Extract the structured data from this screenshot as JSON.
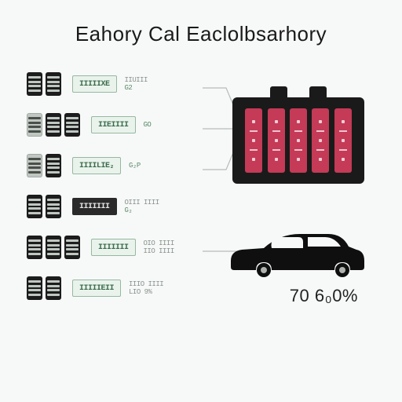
{
  "title": "Eahory Cal Eaclolbsarhory",
  "colors": {
    "background": "#f7f9f9",
    "text": "#1a1a1a",
    "chip_dark": "#1d1d1d",
    "chip_light": "#bfc7c1",
    "badge_green_bg": "#e9f3ec",
    "badge_green_border": "#96b89f",
    "badge_green_text": "#3a6b4a",
    "badge_black_bg": "#2a2a2a",
    "badge_black_text": "#e6e6e6",
    "sub_gray": "#8a938c",
    "sub_green": "#5b8a67",
    "battery_body": "#1a1a1a",
    "cell_pink": "#c43a57",
    "lead_line": "#b6bcb8",
    "car_body": "#0f0f0f"
  },
  "rows": [
    {
      "chips": [
        "dark",
        "dark"
      ],
      "badge": {
        "text": "IIIIIXE",
        "style": "green"
      },
      "sub": {
        "top": "IIUIII",
        "bottom": "G2",
        "top_color": "gray",
        "bottom_color": "green"
      }
    },
    {
      "chips": [
        "light",
        "dark",
        "dark"
      ],
      "badge": {
        "text": "IIEIIII",
        "style": "green"
      },
      "sub": {
        "top": "GO",
        "bottom": "",
        "top_color": "green",
        "bottom_color": "gray"
      }
    },
    {
      "chips": [
        "light",
        "dark"
      ],
      "badge": {
        "text": "IIIILIE₂",
        "style": "green"
      },
      "sub": {
        "top": "G₂P",
        "bottom": "",
        "top_color": "green",
        "bottom_color": "gray"
      }
    },
    {
      "chips": [
        "dark",
        "dark"
      ],
      "badge": {
        "text": "IIIIIII",
        "style": "black"
      },
      "sub": {
        "top": "OIII IIII",
        "bottom": "G₂",
        "top_color": "gray",
        "bottom_color": "green"
      }
    },
    {
      "chips": [
        "dark",
        "dark",
        "dark"
      ],
      "badge": {
        "text": "IIIIIII",
        "style": "green"
      },
      "sub": {
        "top": "OIO IIII",
        "bottom": "IIO IIII",
        "top_color": "gray",
        "bottom_color": "gray"
      }
    },
    {
      "chips": [
        "dark",
        "dark"
      ],
      "badge": {
        "text": "IIIIIEII",
        "style": "green"
      },
      "sub": {
        "top": "IIIO IIII",
        "bottom": "LIO 9%",
        "top_color": "gray",
        "bottom_color": "gray"
      }
    }
  ],
  "battery": {
    "caps": 2,
    "cells": 5,
    "cell_color": "#c43a57"
  },
  "percentage": "70 6₀0%"
}
